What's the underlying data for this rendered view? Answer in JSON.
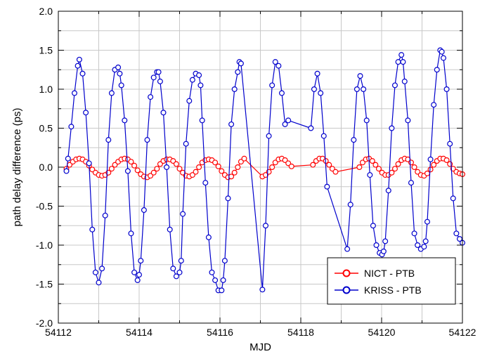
{
  "chart_data": {
    "type": "line",
    "xlabel": "MJD",
    "ylabel": "path delay difference (ps)",
    "xlim": [
      54112,
      54122
    ],
    "ylim": [
      -2.0,
      2.0
    ],
    "x_ticks": [
      "54112",
      "54114",
      "54116",
      "54118",
      "54120",
      "54122"
    ],
    "x_tick_values": [
      54112,
      54114,
      54116,
      54118,
      54120,
      54122
    ],
    "y_ticks": [
      "-2.0",
      "-1.5",
      "-1.0",
      "-0.5",
      "0.0",
      "0.5",
      "1.0",
      "1.5",
      "2.0"
    ],
    "y_tick_values": [
      -2.0,
      -1.5,
      -1.0,
      -0.5,
      0.0,
      0.5,
      1.0,
      1.5,
      2.0
    ],
    "grid": true,
    "legend_position": "bottom-right",
    "series": [
      {
        "name": "NICT - PTB",
        "color": "#ff0000",
        "marker": "open-circle",
        "x": [
          54112.2,
          54112.28,
          54112.36,
          54112.44,
          54112.52,
          54112.6,
          54112.68,
          54112.76,
          54112.84,
          54112.92,
          54113.0,
          54113.08,
          54113.16,
          54113.24,
          54113.32,
          54113.4,
          54113.48,
          54113.56,
          54113.64,
          54113.72,
          54113.8,
          54113.88,
          54113.96,
          54114.04,
          54114.12,
          54114.2,
          54114.28,
          54114.36,
          54114.44,
          54114.52,
          54114.6,
          54114.68,
          54114.76,
          54114.84,
          54114.92,
          54115.0,
          54115.08,
          54115.16,
          54115.24,
          54115.32,
          54115.4,
          54115.48,
          54115.56,
          54115.64,
          54115.72,
          54115.8,
          54115.88,
          54115.96,
          54116.04,
          54116.12,
          54116.2,
          54116.28,
          54116.36,
          54116.44,
          54116.52,
          54116.6,
          54117.05,
          54117.13,
          54117.21,
          54117.29,
          54117.37,
          54117.45,
          54117.53,
          54117.61,
          54117.69,
          54117.77,
          54118.3,
          54118.38,
          54118.46,
          54118.54,
          54118.62,
          54118.7,
          54118.78,
          54118.86,
          54119.45,
          54119.53,
          54119.61,
          54119.69,
          54119.77,
          54119.85,
          54119.93,
          54120.01,
          54120.09,
          54120.17,
          54120.25,
          54120.33,
          54120.41,
          54120.49,
          54120.57,
          54120.65,
          54120.73,
          54120.81,
          54120.89,
          54120.97,
          54121.05,
          54121.13,
          54121.21,
          54121.29,
          54121.37,
          54121.45,
          54121.53,
          54121.61,
          54121.69,
          54121.77,
          54121.85,
          54121.93,
          54122.0
        ],
        "y": [
          -0.02,
          0.03,
          0.07,
          0.1,
          0.11,
          0.1,
          0.07,
          0.02,
          -0.03,
          -0.07,
          -0.1,
          -0.11,
          -0.1,
          -0.07,
          -0.02,
          0.03,
          0.07,
          0.1,
          0.11,
          0.1,
          0.07,
          0.02,
          -0.04,
          -0.09,
          -0.12,
          -0.13,
          -0.11,
          -0.07,
          -0.02,
          0.04,
          0.08,
          0.1,
          0.1,
          0.08,
          0.04,
          -0.02,
          -0.07,
          -0.11,
          -0.12,
          -0.1,
          -0.06,
          0.0,
          0.06,
          0.09,
          0.1,
          0.09,
          0.06,
          0.01,
          -0.05,
          -0.1,
          -0.13,
          -0.12,
          -0.07,
          0.0,
          0.07,
          0.11,
          -0.12,
          -0.1,
          -0.06,
          0.0,
          0.06,
          0.1,
          0.11,
          0.09,
          0.05,
          0.01,
          0.03,
          0.08,
          0.11,
          0.11,
          0.08,
          0.03,
          -0.02,
          -0.06,
          0.0,
          0.06,
          0.1,
          0.11,
          0.08,
          0.03,
          -0.02,
          -0.07,
          -0.1,
          -0.1,
          -0.07,
          -0.02,
          0.04,
          0.09,
          0.11,
          0.1,
          0.06,
          0.0,
          -0.06,
          -0.1,
          -0.11,
          -0.08,
          -0.03,
          0.03,
          0.08,
          0.11,
          0.11,
          0.09,
          0.04,
          -0.02,
          -0.06,
          -0.08,
          -0.09
        ]
      },
      {
        "name": "KRISS - PTB",
        "color": "#0000cc",
        "marker": "open-circle",
        "x": [
          54112.2,
          54112.24,
          54112.32,
          54112.4,
          54112.48,
          54112.52,
          54112.6,
          54112.68,
          54112.76,
          54112.84,
          54112.92,
          54113.0,
          54113.08,
          54113.16,
          54113.24,
          54113.32,
          54113.4,
          54113.48,
          54113.52,
          54113.56,
          54113.64,
          54113.72,
          54113.8,
          54113.88,
          54113.96,
          54114.0,
          54114.04,
          54114.12,
          54114.2,
          54114.28,
          54114.36,
          54114.44,
          54114.48,
          54114.52,
          54114.6,
          54114.68,
          54114.76,
          54114.84,
          54114.92,
          54115.0,
          54115.04,
          54115.08,
          54115.16,
          54115.24,
          54115.32,
          54115.4,
          54115.48,
          54115.52,
          54115.56,
          54115.64,
          54115.72,
          54115.8,
          54115.88,
          54115.96,
          54116.04,
          54116.08,
          54116.12,
          54116.2,
          54116.28,
          54116.36,
          54116.44,
          54116.48,
          54116.52,
          54117.05,
          54117.13,
          54117.21,
          54117.29,
          54117.37,
          54117.45,
          54117.53,
          54117.61,
          54117.69,
          54118.25,
          54118.33,
          54118.41,
          54118.49,
          54118.57,
          54118.65,
          54119.15,
          54119.23,
          54119.31,
          54119.39,
          54119.47,
          54119.55,
          54119.63,
          54119.71,
          54119.79,
          54119.87,
          54119.95,
          54120.01,
          54120.05,
          54120.09,
          54120.17,
          54120.25,
          54120.33,
          54120.41,
          54120.49,
          54120.53,
          54120.57,
          54120.65,
          54120.73,
          54120.81,
          54120.89,
          54120.97,
          54121.05,
          54121.09,
          54121.13,
          54121.21,
          54121.29,
          54121.37,
          54121.45,
          54121.49,
          54121.53,
          54121.61,
          54121.69,
          54121.77,
          54121.85,
          54121.93,
          54122.0
        ],
        "y": [
          -0.05,
          0.11,
          0.52,
          0.95,
          1.3,
          1.38,
          1.2,
          0.7,
          0.05,
          -0.8,
          -1.35,
          -1.48,
          -1.3,
          -0.62,
          0.35,
          0.95,
          1.25,
          1.28,
          1.2,
          1.05,
          0.6,
          -0.05,
          -0.85,
          -1.35,
          -1.45,
          -1.38,
          -1.2,
          -0.55,
          0.35,
          0.9,
          1.15,
          1.22,
          1.22,
          1.1,
          0.7,
          0.0,
          -0.8,
          -1.3,
          -1.4,
          -1.35,
          -1.2,
          -0.6,
          0.3,
          0.85,
          1.12,
          1.2,
          1.18,
          1.05,
          0.6,
          -0.2,
          -0.9,
          -1.35,
          -1.45,
          -1.58,
          -1.58,
          -1.45,
          -1.2,
          -0.4,
          0.55,
          1.0,
          1.22,
          1.35,
          1.33,
          -1.57,
          -0.75,
          0.4,
          1.05,
          1.35,
          1.3,
          0.95,
          0.55,
          0.6,
          0.5,
          1.0,
          1.2,
          0.95,
          0.4,
          -0.25,
          -1.05,
          -0.48,
          0.35,
          1.0,
          1.17,
          1.0,
          0.6,
          -0.1,
          -0.75,
          -1.0,
          -1.1,
          -1.12,
          -1.08,
          -0.95,
          -0.3,
          0.5,
          1.05,
          1.35,
          1.44,
          1.35,
          1.1,
          0.6,
          -0.2,
          -0.85,
          -1.0,
          -1.05,
          -1.02,
          -0.95,
          -0.7,
          0.1,
          0.8,
          1.25,
          1.5,
          1.48,
          1.4,
          1.0,
          0.3,
          -0.4,
          -0.85,
          -0.92,
          -0.97
        ]
      }
    ]
  }
}
